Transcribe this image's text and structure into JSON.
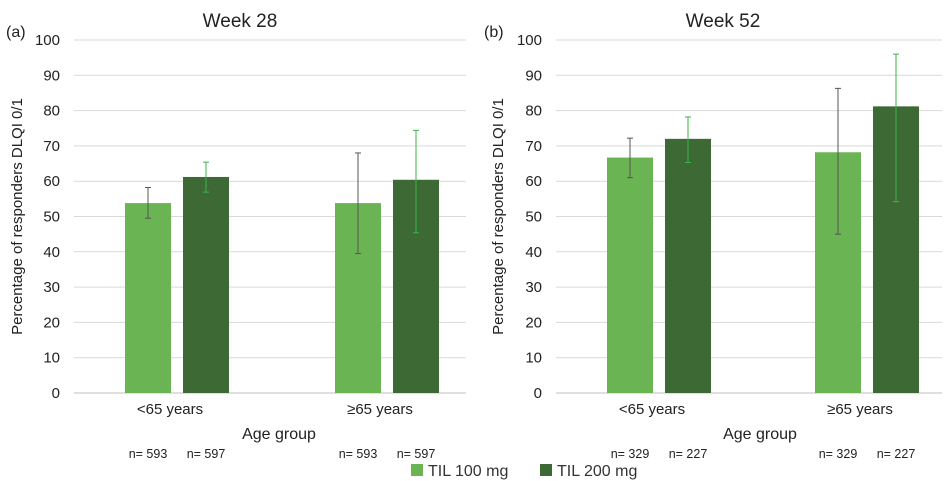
{
  "legend": [
    {
      "label": "TIL 100 mg",
      "color": "#6ab454"
    },
    {
      "label": "TIL 200 mg",
      "color": "#3d6a34"
    }
  ],
  "chart_data": [
    {
      "type": "bar",
      "panel_label": "(a)",
      "title": "Week 28",
      "xlabel": "Age group",
      "ylabel": "Percentage of responders DLQI 0/1",
      "ylim": [
        0,
        100
      ],
      "yticks": [
        "0",
        "10",
        "20",
        "30",
        "40",
        "50",
        "60",
        "70",
        "80",
        "90",
        "100"
      ],
      "grid": true,
      "categories": [
        "<65 years",
        "≥65 years"
      ],
      "series": [
        {
          "name": "TIL 100 mg",
          "color": "#6ab454",
          "errcolor": "#555555",
          "values": [
            53.8,
            53.8
          ],
          "err_low": [
            49.5,
            39.5
          ],
          "err_high": [
            58.2,
            68.0
          ],
          "n": [
            "n= 593",
            "n= 593"
          ]
        },
        {
          "name": "TIL 200 mg",
          "color": "#3d6a34",
          "errcolor": "#3cb44a",
          "values": [
            61.2,
            60.4
          ],
          "err_low": [
            56.9,
            45.4
          ],
          "err_high": [
            65.4,
            74.4
          ],
          "n": [
            "n= 597",
            "n= 597"
          ]
        }
      ]
    },
    {
      "type": "bar",
      "panel_label": "(b)",
      "title": "Week 52",
      "xlabel": "Age group",
      "ylabel": "Percentage of responders DLQI 0/1",
      "ylim": [
        0,
        100
      ],
      "yticks": [
        "0",
        "10",
        "20",
        "30",
        "40",
        "50",
        "60",
        "70",
        "80",
        "90",
        "100"
      ],
      "grid": true,
      "categories": [
        "<65 years",
        "≥65 years"
      ],
      "series": [
        {
          "name": "TIL 100 mg",
          "color": "#6ab454",
          "errcolor": "#555555",
          "values": [
            66.7,
            68.2
          ],
          "err_low": [
            61.0,
            45.0
          ],
          "err_high": [
            72.2,
            86.3
          ],
          "n": [
            "n= 329",
            "n= 329"
          ]
        },
        {
          "name": "TIL 200 mg",
          "color": "#3d6a34",
          "errcolor": "#3cb44a",
          "values": [
            72.0,
            81.2
          ],
          "err_low": [
            65.3,
            54.2
          ],
          "err_high": [
            78.2,
            96.0
          ],
          "n": [
            "n= 227",
            "n= 227"
          ]
        }
      ]
    }
  ]
}
